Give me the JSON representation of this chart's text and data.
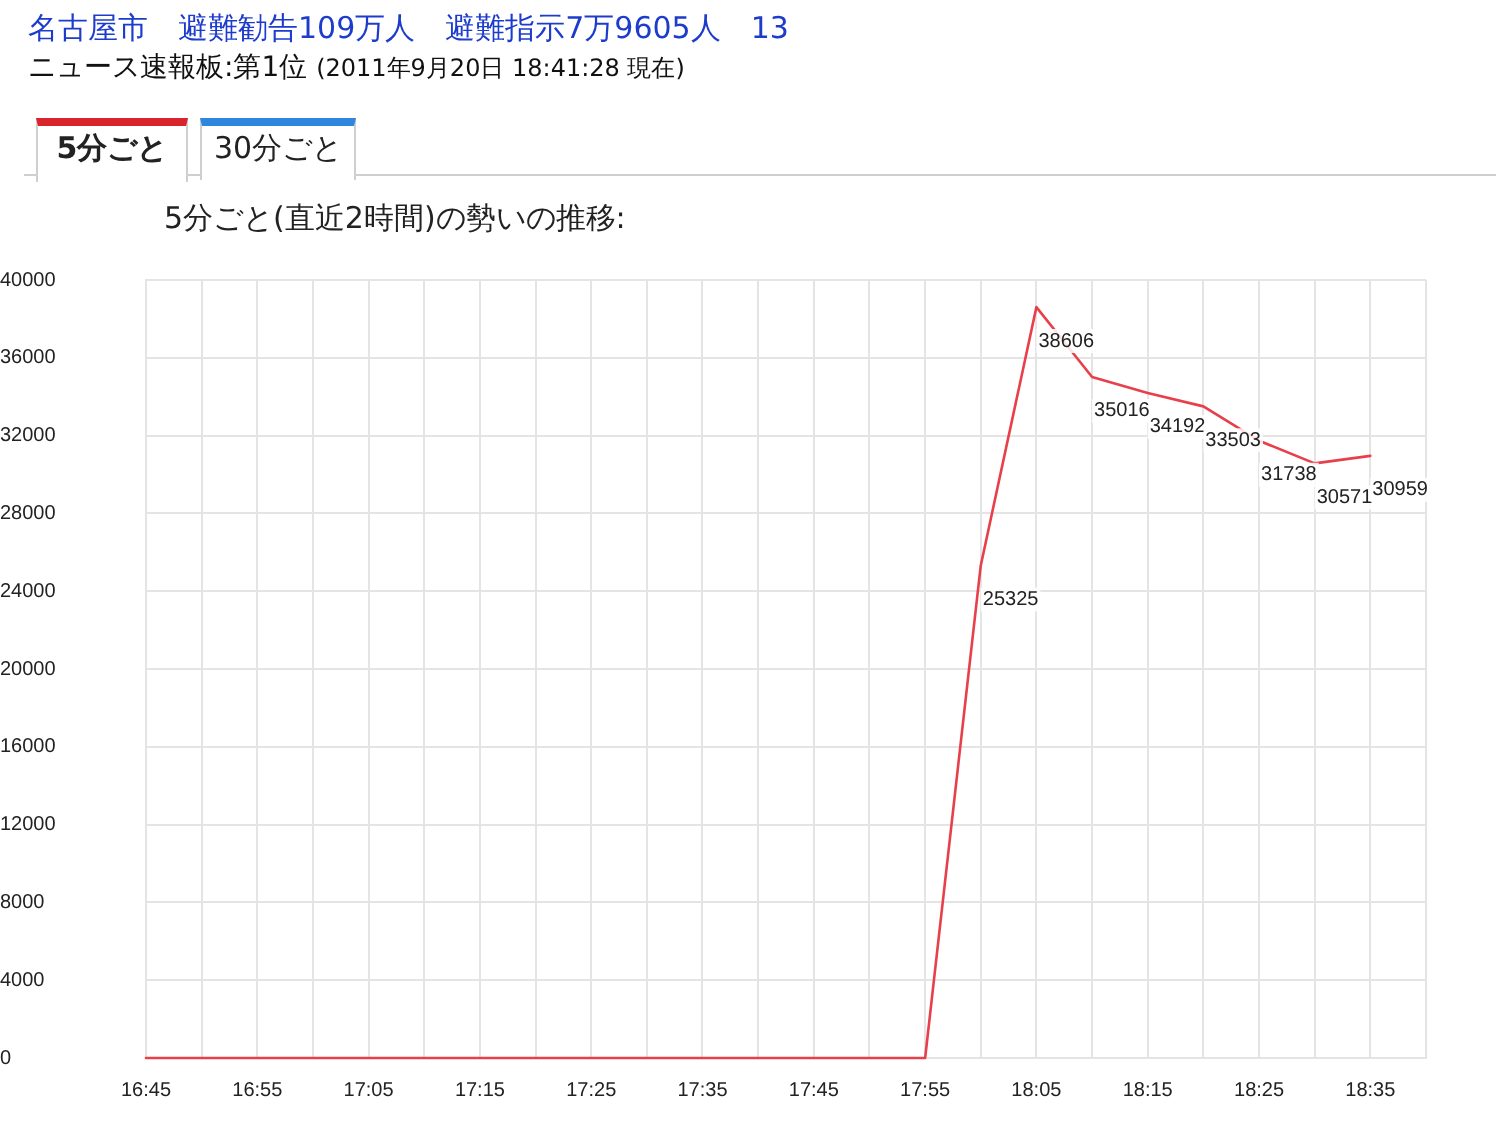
{
  "chart_data": {
    "type": "line",
    "title": "名古屋市　避難勧告109万人　避難指示7万9605人　13",
    "subtitle": "ニュース速報板:第1位",
    "annotations": [
      "(2011年9月20日 18:41:28 現在)",
      "5分ごと",
      "30分ごと",
      "5分ごと(直近2時間)の勢いの推移:"
    ],
    "x": [
      16.75,
      16.8333,
      16.9167,
      17,
      17.0833,
      17.1667,
      17.25,
      17.3333,
      17.4167,
      17.5,
      17.5833,
      17.6667,
      17.75,
      17.8333,
      17.9167,
      18,
      18.0833,
      18.1667,
      18.25,
      18.3333,
      18.4167,
      18.5,
      18.5833
    ],
    "values": [
      0,
      0,
      0,
      0,
      0,
      0,
      0,
      0,
      0,
      0,
      0,
      0,
      0,
      0,
      0,
      25325,
      38606,
      35016,
      34192,
      33503,
      31738,
      30571,
      30959
    ],
    "value_labels": [
      null,
      null,
      null,
      null,
      null,
      null,
      null,
      null,
      null,
      null,
      null,
      null,
      null,
      null,
      null,
      "25325",
      "38606",
      "35016",
      "34192",
      "33503",
      "31738",
      "30571",
      "30959"
    ],
    "color": "#e8404a",
    "xlim": [
      16.75,
      18.6667
    ],
    "xticks": [
      {
        "value": 16.75,
        "label": "16:45"
      },
      {
        "value": 16.8333,
        "label": null
      },
      {
        "value": 16.9167,
        "label": "16:55"
      },
      {
        "value": 17,
        "label": null
      },
      {
        "value": 17.0833,
        "label": "17:05"
      },
      {
        "value": 17.1667,
        "label": null
      },
      {
        "value": 17.25,
        "label": "17:15"
      },
      {
        "value": 17.3333,
        "label": null
      },
      {
        "value": 17.4167,
        "label": "17:25"
      },
      {
        "value": 17.5,
        "label": null
      },
      {
        "value": 17.5833,
        "label": "17:35"
      },
      {
        "value": 17.6667,
        "label": null
      },
      {
        "value": 17.75,
        "label": "17:45"
      },
      {
        "value": 17.8333,
        "label": null
      },
      {
        "value": 17.9167,
        "label": "17:55"
      },
      {
        "value": 18,
        "label": null
      },
      {
        "value": 18.0833,
        "label": "18:05"
      },
      {
        "value": 18.1667,
        "label": null
      },
      {
        "value": 18.25,
        "label": "18:15"
      },
      {
        "value": 18.3333,
        "label": null
      },
      {
        "value": 18.4167,
        "label": "18:25"
      },
      {
        "value": 18.5,
        "label": null
      },
      {
        "value": 18.5833,
        "label": "18:35"
      },
      {
        "value": 18.6667,
        "label": null
      }
    ],
    "ylim": [
      0,
      40000
    ],
    "yticks": [
      0,
      4000,
      8000,
      12000,
      16000,
      20000,
      24000,
      28000,
      32000,
      36000,
      40000
    ],
    "grid": true
  }
}
